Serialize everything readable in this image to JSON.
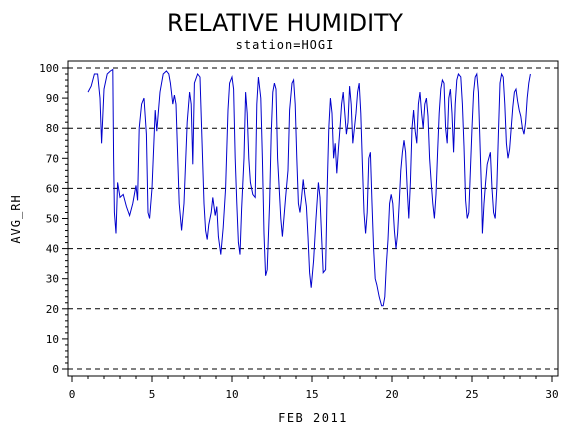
{
  "chart_data": {
    "type": "line",
    "title": "RELATIVE HUMIDITY",
    "subtitle": "station=HOGI",
    "xlabel": "FEB 2011",
    "ylabel": "AVG_RH",
    "xlim": [
      0,
      30
    ],
    "ylim": [
      0,
      100
    ],
    "x_ticks": [
      0,
      5,
      10,
      15,
      20,
      25,
      30
    ],
    "x_tick_labels": [
      "0",
      "5",
      "10",
      "15",
      "20",
      "25",
      "30"
    ],
    "y_ticks": [
      0,
      10,
      20,
      30,
      40,
      50,
      60,
      70,
      80,
      90,
      100
    ],
    "y_tick_labels": [
      "0",
      "10",
      "20",
      "30",
      "40",
      "50",
      "60",
      "70",
      "80",
      "90",
      "100"
    ],
    "gridlines_y": [
      0,
      20,
      40,
      60,
      80,
      100
    ],
    "grid_style": "dashed",
    "line_color": "#0000cc",
    "series": [
      {
        "values": [
          [
            1.0,
            92
          ],
          [
            1.2,
            94
          ],
          [
            1.4,
            98
          ],
          [
            1.6,
            98
          ],
          [
            1.75,
            90
          ],
          [
            1.85,
            75
          ],
          [
            2.0,
            93
          ],
          [
            2.2,
            98
          ],
          [
            2.4,
            99
          ],
          [
            2.55,
            99.5
          ],
          [
            2.6,
            70
          ],
          [
            2.65,
            52
          ],
          [
            2.75,
            45
          ],
          [
            2.85,
            62
          ],
          [
            3.0,
            57
          ],
          [
            3.2,
            58
          ],
          [
            3.4,
            54
          ],
          [
            3.6,
            51
          ],
          [
            3.8,
            55
          ],
          [
            4.0,
            61
          ],
          [
            4.1,
            56
          ],
          [
            4.2,
            80
          ],
          [
            4.35,
            88
          ],
          [
            4.5,
            90
          ],
          [
            4.65,
            78
          ],
          [
            4.75,
            52
          ],
          [
            4.85,
            50
          ],
          [
            5.0,
            60
          ],
          [
            5.2,
            86
          ],
          [
            5.3,
            79
          ],
          [
            5.5,
            92
          ],
          [
            5.7,
            98
          ],
          [
            5.9,
            99
          ],
          [
            6.05,
            98
          ],
          [
            6.15,
            95
          ],
          [
            6.3,
            88
          ],
          [
            6.4,
            91
          ],
          [
            6.5,
            88
          ],
          [
            6.7,
            55
          ],
          [
            6.85,
            46
          ],
          [
            7.0,
            55
          ],
          [
            7.2,
            82
          ],
          [
            7.35,
            92
          ],
          [
            7.45,
            88
          ],
          [
            7.55,
            68
          ],
          [
            7.65,
            95
          ],
          [
            7.85,
            98
          ],
          [
            8.0,
            97
          ],
          [
            8.1,
            80
          ],
          [
            8.25,
            55
          ],
          [
            8.35,
            46
          ],
          [
            8.45,
            43
          ],
          [
            8.55,
            48
          ],
          [
            8.7,
            52
          ],
          [
            8.8,
            57
          ],
          [
            8.95,
            51
          ],
          [
            9.05,
            54
          ],
          [
            9.15,
            44
          ],
          [
            9.3,
            38
          ],
          [
            9.45,
            47
          ],
          [
            9.6,
            60
          ],
          [
            9.75,
            86
          ],
          [
            9.85,
            95
          ],
          [
            10.0,
            97
          ],
          [
            10.1,
            93
          ],
          [
            10.2,
            70
          ],
          [
            10.3,
            55
          ],
          [
            10.4,
            42
          ],
          [
            10.5,
            38
          ],
          [
            10.6,
            53
          ],
          [
            10.75,
            70
          ],
          [
            10.85,
            92
          ],
          [
            10.95,
            85
          ],
          [
            11.05,
            70
          ],
          [
            11.15,
            62
          ],
          [
            11.3,
            58
          ],
          [
            11.45,
            57
          ],
          [
            11.55,
            88
          ],
          [
            11.65,
            97
          ],
          [
            11.8,
            90
          ],
          [
            11.9,
            70
          ],
          [
            12.0,
            45
          ],
          [
            12.1,
            31
          ],
          [
            12.2,
            33
          ],
          [
            12.35,
            55
          ],
          [
            12.45,
            78
          ],
          [
            12.55,
            92
          ],
          [
            12.65,
            95
          ],
          [
            12.75,
            93
          ],
          [
            12.85,
            70
          ],
          [
            12.95,
            60
          ],
          [
            13.05,
            50
          ],
          [
            13.15,
            44
          ],
          [
            13.35,
            57
          ],
          [
            13.5,
            66
          ],
          [
            13.6,
            86
          ],
          [
            13.75,
            95
          ],
          [
            13.85,
            96
          ],
          [
            13.95,
            88
          ],
          [
            14.05,
            70
          ],
          [
            14.15,
            55
          ],
          [
            14.25,
            52
          ],
          [
            14.35,
            57
          ],
          [
            14.45,
            63
          ],
          [
            14.55,
            58
          ],
          [
            14.65,
            54
          ],
          [
            14.75,
            44
          ],
          [
            14.85,
            32
          ],
          [
            14.95,
            27
          ],
          [
            15.1,
            36
          ],
          [
            15.25,
            50
          ],
          [
            15.4,
            62
          ],
          [
            15.5,
            57
          ],
          [
            15.6,
            44
          ],
          [
            15.7,
            32
          ],
          [
            15.85,
            33
          ],
          [
            15.95,
            60
          ],
          [
            16.05,
            80
          ],
          [
            16.15,
            90
          ],
          [
            16.25,
            85
          ],
          [
            16.35,
            70
          ],
          [
            16.45,
            75
          ],
          [
            16.55,
            65
          ],
          [
            16.65,
            73
          ],
          [
            16.75,
            80
          ],
          [
            16.85,
            88
          ],
          [
            16.95,
            92
          ],
          [
            17.05,
            85
          ],
          [
            17.15,
            78
          ],
          [
            17.25,
            82
          ],
          [
            17.35,
            94
          ],
          [
            17.45,
            88
          ],
          [
            17.55,
            75
          ],
          [
            17.65,
            80
          ],
          [
            17.75,
            85
          ],
          [
            17.85,
            92
          ],
          [
            17.95,
            95
          ],
          [
            18.05,
            85
          ],
          [
            18.15,
            68
          ],
          [
            18.25,
            52
          ],
          [
            18.35,
            45
          ],
          [
            18.45,
            52
          ],
          [
            18.55,
            70
          ],
          [
            18.65,
            72
          ],
          [
            18.75,
            55
          ],
          [
            18.85,
            40
          ],
          [
            18.95,
            30
          ],
          [
            19.05,
            28
          ],
          [
            19.2,
            24
          ],
          [
            19.35,
            21
          ],
          [
            19.45,
            21
          ],
          [
            19.55,
            24
          ],
          [
            19.65,
            35
          ],
          [
            19.75,
            43
          ],
          [
            19.85,
            55
          ],
          [
            19.95,
            58
          ],
          [
            20.05,
            55
          ],
          [
            20.15,
            46
          ],
          [
            20.25,
            40
          ],
          [
            20.35,
            45
          ],
          [
            20.45,
            55
          ],
          [
            20.55,
            66
          ],
          [
            20.65,
            72
          ],
          [
            20.75,
            76
          ],
          [
            20.85,
            72
          ],
          [
            20.95,
            60
          ],
          [
            21.05,
            50
          ],
          [
            21.15,
            62
          ],
          [
            21.25,
            80
          ],
          [
            21.35,
            86
          ],
          [
            21.45,
            79
          ],
          [
            21.55,
            75
          ],
          [
            21.65,
            88
          ],
          [
            21.75,
            92
          ],
          [
            21.85,
            85
          ],
          [
            21.95,
            80
          ],
          [
            22.05,
            88
          ],
          [
            22.15,
            90
          ],
          [
            22.25,
            84
          ],
          [
            22.35,
            70
          ],
          [
            22.45,
            62
          ],
          [
            22.55,
            55
          ],
          [
            22.65,
            50
          ],
          [
            22.75,
            58
          ],
          [
            22.85,
            72
          ],
          [
            22.95,
            85
          ],
          [
            23.05,
            93
          ],
          [
            23.15,
            96
          ],
          [
            23.25,
            95
          ],
          [
            23.35,
            80
          ],
          [
            23.45,
            75
          ],
          [
            23.55,
            90
          ],
          [
            23.65,
            93
          ],
          [
            23.75,
            85
          ],
          [
            23.85,
            72
          ],
          [
            23.95,
            88
          ],
          [
            24.05,
            96
          ],
          [
            24.15,
            98
          ],
          [
            24.3,
            97
          ],
          [
            24.4,
            88
          ],
          [
            24.5,
            74
          ],
          [
            24.6,
            56
          ],
          [
            24.7,
            50
          ],
          [
            24.8,
            52
          ],
          [
            24.9,
            66
          ],
          [
            25.0,
            80
          ],
          [
            25.1,
            92
          ],
          [
            25.2,
            97
          ],
          [
            25.3,
            98
          ],
          [
            25.4,
            92
          ],
          [
            25.5,
            75
          ],
          [
            25.6,
            58
          ],
          [
            25.65,
            45
          ],
          [
            25.75,
            55
          ],
          [
            25.85,
            62
          ],
          [
            25.95,
            68
          ],
          [
            26.05,
            70
          ],
          [
            26.15,
            72
          ],
          [
            26.25,
            60
          ],
          [
            26.35,
            52
          ],
          [
            26.45,
            50
          ],
          [
            26.55,
            60
          ],
          [
            26.65,
            78
          ],
          [
            26.75,
            95
          ],
          [
            26.85,
            98
          ],
          [
            26.95,
            97
          ],
          [
            27.05,
            88
          ],
          [
            27.15,
            75
          ],
          [
            27.25,
            70
          ],
          [
            27.35,
            73
          ],
          [
            27.45,
            80
          ],
          [
            27.55,
            87
          ],
          [
            27.65,
            92
          ],
          [
            27.75,
            93
          ],
          [
            27.85,
            89
          ],
          [
            27.95,
            86
          ],
          [
            28.05,
            84
          ],
          [
            28.15,
            80
          ],
          [
            28.25,
            78
          ],
          [
            28.35,
            82
          ],
          [
            28.45,
            90
          ],
          [
            28.55,
            95
          ],
          [
            28.65,
            98
          ]
        ]
      }
    ]
  }
}
